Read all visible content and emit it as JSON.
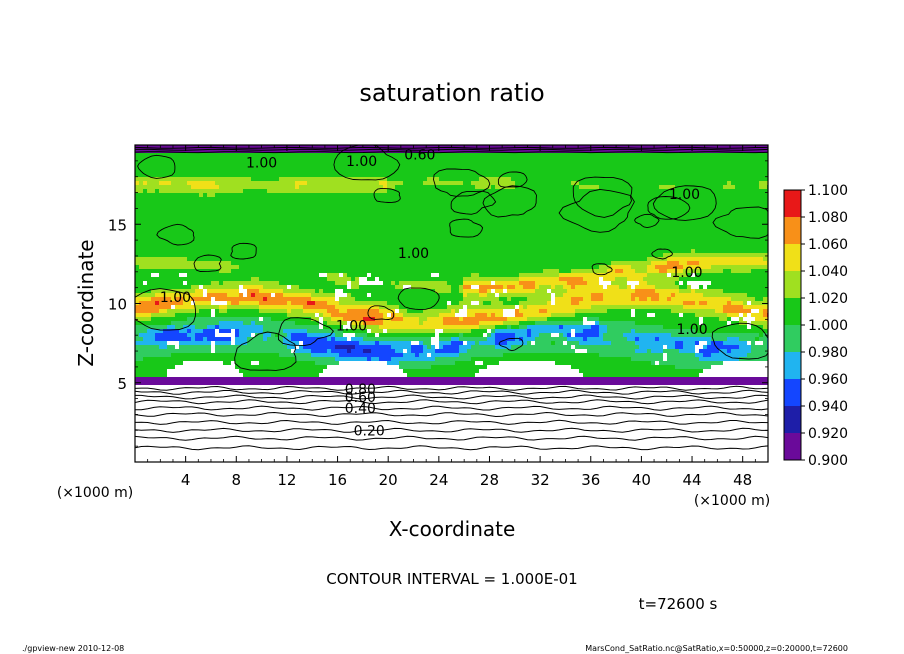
{
  "chart_data": {
    "type": "heatmap",
    "title": "saturation ratio",
    "xlabel": "X-coordinate",
    "ylabel": "Z-coordinate",
    "x_unit_left": "(×1000 m)",
    "x_unit_right": "(×1000 m)",
    "xlim": [
      0,
      50
    ],
    "ylim": [
      0,
      20
    ],
    "x_ticks": [
      4,
      8,
      12,
      16,
      20,
      24,
      28,
      32,
      36,
      40,
      44,
      48
    ],
    "x_tick_labels": [
      "4",
      "8",
      "12",
      "16",
      "20",
      "24",
      "28",
      "32",
      "36",
      "40",
      "44",
      "48"
    ],
    "y_ticks": [
      5,
      10,
      15
    ],
    "y_tick_labels": [
      "5",
      "10",
      "15"
    ],
    "colorbar": {
      "levels": [
        0.9,
        0.92,
        0.94,
        0.96,
        0.98,
        1.0,
        1.02,
        1.04,
        1.06,
        1.08,
        1.1
      ],
      "labels": [
        "0.900",
        "0.920",
        "0.940",
        "0.960",
        "0.980",
        "1.000",
        "1.020",
        "1.040",
        "1.060",
        "1.080",
        "1.100"
      ],
      "colors": [
        "#6a0a9a",
        "#1e1ea8",
        "#1446ff",
        "#20b4f0",
        "#30cc60",
        "#18c818",
        "#a0e020",
        "#f0e018",
        "#f89018",
        "#e81818",
        "#ff9090"
      ]
    },
    "contour_labels": [
      {
        "text": "0.20",
        "x": 18.5,
        "z": 2.0
      },
      {
        "text": "0.40",
        "x": 17.8,
        "z": 3.4
      },
      {
        "text": "0.60",
        "x": 17.8,
        "z": 4.1
      },
      {
        "text": "0.80",
        "x": 17.8,
        "z": 4.6
      },
      {
        "text": "1.00",
        "x": 17.1,
        "z": 8.6
      },
      {
        "text": "1.00",
        "x": 3.2,
        "z": 10.4
      },
      {
        "text": "1.00",
        "x": 22.0,
        "z": 13.2
      },
      {
        "text": "1.00",
        "x": 43.6,
        "z": 12.0
      },
      {
        "text": "1.00",
        "x": 44.0,
        "z": 8.4
      },
      {
        "text": "1.00",
        "x": 10.0,
        "z": 18.9
      },
      {
        "text": "1.00",
        "x": 43.4,
        "z": 16.9
      },
      {
        "text": "1.00",
        "x": 17.9,
        "z": 19.0
      },
      {
        "text": "0.60",
        "x": 22.5,
        "z": 19.4
      }
    ],
    "contour_interval": "CONTOUR INTERVAL = 1.000E-01",
    "time_label": "t=72600 s"
  },
  "footer": {
    "left": "./gpview-new   2010-12-08",
    "right": "MarsCond_SatRatio.nc@SatRatio,x=0:50000,z=0:20000,t=72600"
  },
  "colors": {
    "background": "#ffffff",
    "cloud_free_core": "#ffffff",
    "contour_line": "#000000"
  }
}
